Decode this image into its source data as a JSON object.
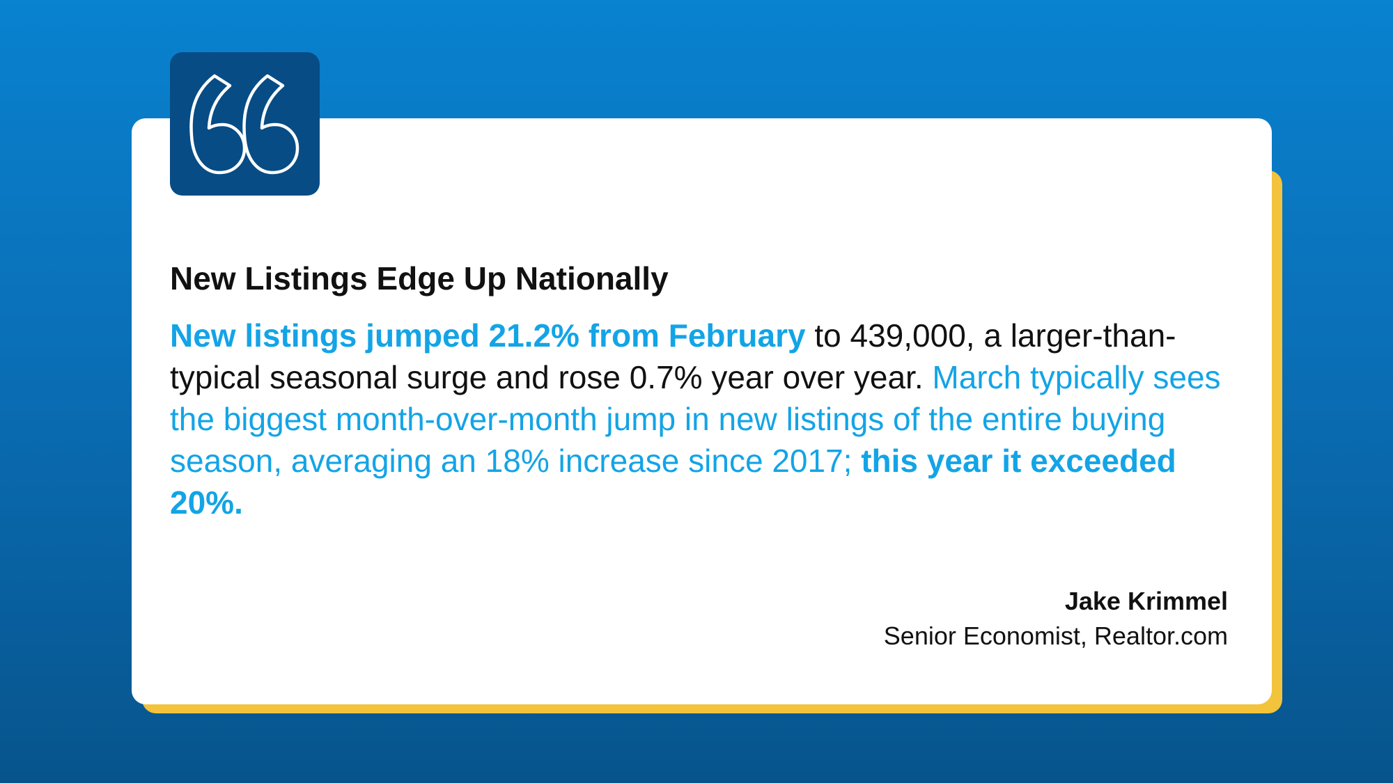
{
  "colors": {
    "background_top": "#0982cf",
    "background_bottom": "#07548c",
    "card": "#ffffff",
    "card_shadow_accent": "#f3c33b",
    "quote_badge": "#074c85",
    "highlight": "#13a4e6",
    "text": "#111111"
  },
  "quote_icon": "open-quote-icon",
  "headline": "New Listings Edge Up Nationally",
  "body": {
    "part1_highlight_bold": "New listings jumped 21.2% from February",
    "part2_plain": " to 439,000, a larger-than-typical seasonal surge and rose 0.7% year over year. ",
    "part3_highlight": "March typically sees the biggest month-over-month jump in new listings of the entire buying season, averaging an 18% increase since 2017; ",
    "part4_highlight_bold": "this year it exceeded 20%."
  },
  "attribution": {
    "name": "Jake Krimmel",
    "role": "Senior Economist, Realtor.com"
  }
}
